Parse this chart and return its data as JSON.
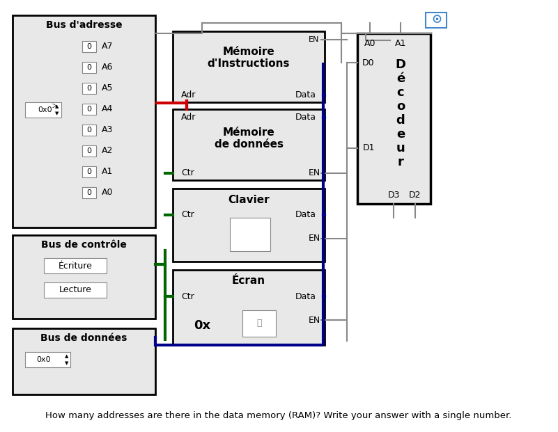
{
  "bg_color": "#e8e8e8",
  "white": "#ffffff",
  "box_edge": "#1a1a1a",
  "bus_adresse_label": "Bus d'adresse",
  "bus_controle_label": "Bus de contrôle",
  "bus_donnees_label": "Bus de données",
  "address_bits": [
    "A7",
    "A6",
    "A5",
    "A4",
    "A3",
    "A2",
    "A1",
    "A0"
  ],
  "address_values": [
    "0",
    "0",
    "0",
    "0",
    "0",
    "0",
    "0",
    "0"
  ],
  "hex_value": "0x0",
  "mem_instr_title": "Mémoire\nd'Instructions",
  "mem_donnees_title": "Mémoire\nde données",
  "clavier_title": "Clavier",
  "ecran_title": "Écran",
  "decodeur_title": "D\né\nc\no\nd\ne\nu\nr",
  "ecriture_label": "Écriture",
  "lecture_label": "Lecture",
  "donnees_hex": "0x0",
  "ecran_hex": "0x",
  "question": "How many addresses are there in the data memory (RAM)? Write your answer with a single number.",
  "red": "#cc0000",
  "green": "#006600",
  "blue": "#00008b",
  "gray_line": "#888888"
}
